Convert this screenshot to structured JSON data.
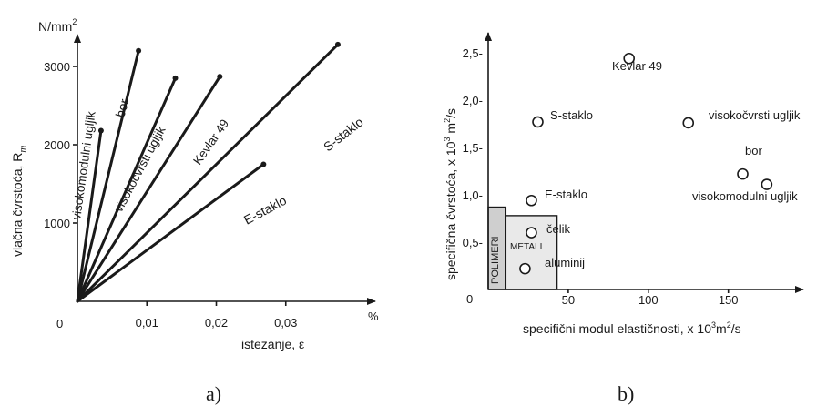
{
  "chart_data": [
    {
      "type": "line",
      "panel_label": "a)",
      "ylabel": "vlačna čvrstoća, R",
      "ylabel_sub": "m",
      "yunit": "N/mm",
      "yunit_sup": "2",
      "xlabel": "istezanje, ε",
      "xunit": "%",
      "xlim": [
        0,
        0.04
      ],
      "ylim": [
        0,
        3500
      ],
      "origin_label": "0",
      "xticks": [
        {
          "v": 0.01,
          "label": "0,01"
        },
        {
          "v": 0.02,
          "label": "0,02"
        },
        {
          "v": 0.03,
          "label": "0,03"
        }
      ],
      "yticks": [
        {
          "v": 1000,
          "label": "1000"
        },
        {
          "v": 2000,
          "label": "2000"
        },
        {
          "v": 3000,
          "label": "3000"
        }
      ],
      "series": [
        {
          "name": "visokomodulni ugljik",
          "x": [
            0,
            0.0034
          ],
          "y": [
            0,
            2180
          ]
        },
        {
          "name": "bor",
          "x": [
            0,
            0.0088
          ],
          "y": [
            0,
            3200
          ]
        },
        {
          "name": "visokočvrsti ugljik",
          "x": [
            0,
            0.0141
          ],
          "y": [
            0,
            2850
          ]
        },
        {
          "name": "Kevlar 49",
          "x": [
            0,
            0.0205
          ],
          "y": [
            0,
            2870
          ]
        },
        {
          "name": "E-staklo",
          "x": [
            0,
            0.0268
          ],
          "y": [
            0,
            1750
          ]
        },
        {
          "name": "S-staklo",
          "x": [
            0,
            0.0375
          ],
          "y": [
            0,
            3280
          ]
        }
      ]
    },
    {
      "type": "scatter",
      "panel_label": "b)",
      "ylabel": "specifična čvrstoća, x 10",
      "ylabel_sup": "3",
      "ylabel_rest": " m",
      "ylabel_sup2": "2",
      "ylabel_end": "/s",
      "xlabel": "specifični modul elastičnosti, x 10",
      "xlabel_sup": "3",
      "xlabel_rest": "m",
      "xlabel_sup2": "2",
      "xlabel_end": "/s",
      "xlim": [
        0,
        190
      ],
      "ylim": [
        0,
        2.75
      ],
      "origin_label": "0",
      "xticks": [
        {
          "v": 50,
          "label": "50"
        },
        {
          "v": 100,
          "label": "100"
        },
        {
          "v": 150,
          "label": "150"
        }
      ],
      "yticks": [
        {
          "v": 0.5,
          "label": "0,5-"
        },
        {
          "v": 1.0,
          "label": "1,0-"
        },
        {
          "v": 1.5,
          "label": "1,5-"
        },
        {
          "v": 2.0,
          "label": "2,0-"
        },
        {
          "v": 2.5,
          "label": "2,5-"
        }
      ],
      "points": [
        {
          "name": "Kevlar 49",
          "x": 88,
          "y": 2.44
        },
        {
          "name": "S-staklo",
          "x": 31,
          "y": 1.77
        },
        {
          "name": "visokočvrsti ugljik",
          "x": 125,
          "y": 1.76
        },
        {
          "name": "bor",
          "x": 159,
          "y": 1.22
        },
        {
          "name": "visokomodulni ugljik",
          "x": 174,
          "y": 1.11
        },
        {
          "name": "E-staklo",
          "x": 27,
          "y": 0.94
        },
        {
          "name": "čelik",
          "x": 27,
          "y": 0.6
        },
        {
          "name": "aluminij",
          "x": 23,
          "y": 0.22
        }
      ],
      "regions": [
        {
          "name": "POLIMERI",
          "x": [
            0,
            11
          ],
          "y": [
            0,
            0.87
          ]
        },
        {
          "name": "METALI",
          "x": [
            11,
            43
          ],
          "y": [
            0,
            0.78
          ]
        }
      ]
    }
  ]
}
